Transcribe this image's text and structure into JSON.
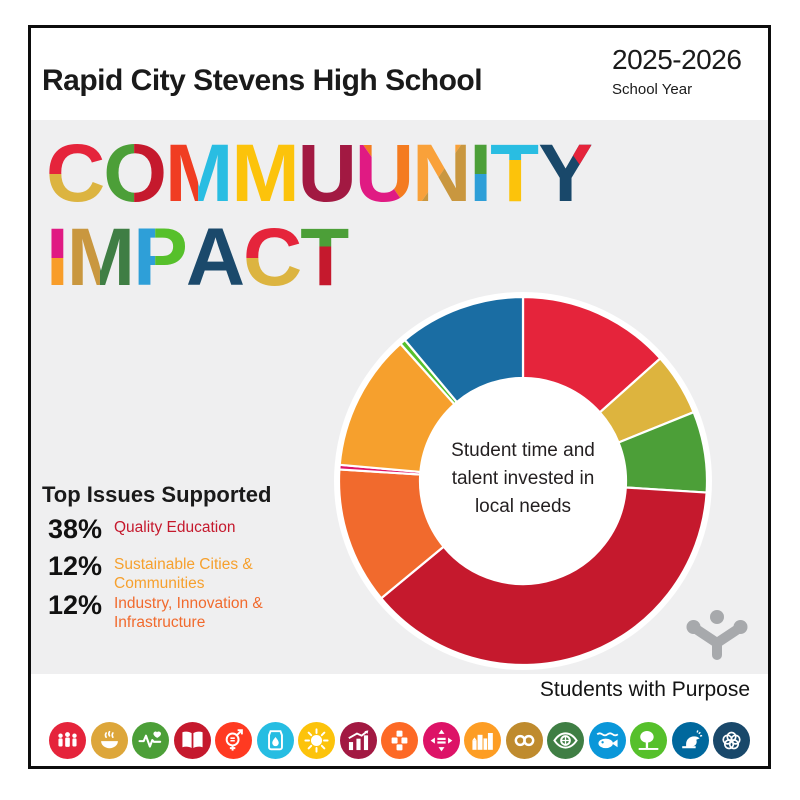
{
  "header": {
    "school": "Rapid City Stevens High School",
    "year": "2025-2026",
    "year_label": "School Year"
  },
  "title": {
    "line1": [
      {
        "ch": "C",
        "split": "h",
        "p": 50,
        "c": [
          "#e5243b",
          "#dcb440"
        ]
      },
      {
        "ch": "O",
        "split": "v",
        "p": 50,
        "c": [
          "#4c9f38",
          "#c5192d"
        ]
      },
      {
        "ch": "M",
        "split": "v",
        "p": 50,
        "c": [
          "#f03d22",
          "#29bde2"
        ]
      },
      {
        "ch": "M",
        "split": "s",
        "c": [
          "#fcc30b"
        ]
      },
      {
        "ch": "U",
        "split": "s",
        "c": [
          "#a21942"
        ]
      },
      {
        "ch": "U",
        "split": "d2",
        "c": [
          "#f47b20",
          "#e01a83"
        ]
      },
      {
        "ch": "N",
        "split": "d",
        "c": [
          "#f9a13a",
          "#c9973f"
        ]
      },
      {
        "ch": "I",
        "split": "h",
        "p": 50,
        "c": [
          "#4c9f38",
          "#2e9fd8"
        ]
      },
      {
        "ch": "T",
        "split": "h",
        "p": 33,
        "c": [
          "#29bde2",
          "#fcc30b"
        ]
      },
      {
        "ch": "Y",
        "split": "y",
        "c": [
          "#19486a",
          "#e5243b"
        ]
      }
    ],
    "line2": [
      {
        "ch": "I",
        "split": "h",
        "p": 50,
        "c": [
          "#e01a83",
          "#f89d2a"
        ]
      },
      {
        "ch": "M",
        "split": "v",
        "p": 50,
        "c": [
          "#c9973f",
          "#3f7e44"
        ]
      },
      {
        "ch": "P",
        "split": "v",
        "p": 42,
        "c": [
          "#2e9fd8",
          "#56c02b"
        ]
      },
      {
        "ch": "A",
        "split": "s",
        "c": [
          "#1b496b"
        ]
      },
      {
        "ch": "C",
        "split": "h",
        "p": 50,
        "c": [
          "#e5243b",
          "#dcb440"
        ]
      },
      {
        "ch": "T",
        "split": "h",
        "p": 36,
        "c": [
          "#4c9f38",
          "#c5192d"
        ]
      }
    ]
  },
  "chart_data": {
    "type": "donut",
    "start_angle_deg": 0,
    "direction": "clockwise",
    "center_lines": [
      "Student time and",
      "talent invested in",
      "local needs"
    ],
    "segments": [
      {
        "label": "unlabeled-1",
        "percent": 13.4,
        "color": "#e5243b"
      },
      {
        "label": "unlabeled-2",
        "percent": 5.5,
        "color": "#ddb43e"
      },
      {
        "label": "unlabeled-3",
        "percent": 7.1,
        "color": "#4c9f38"
      },
      {
        "label": "Quality Education",
        "percent": 38,
        "color": "#c5192d"
      },
      {
        "label": "Industry, Innovation & Infrastructure",
        "percent": 12,
        "color": "#f16a2d"
      },
      {
        "label": "unlabeled-4",
        "percent": 0.4,
        "color": "#dd1367"
      },
      {
        "label": "Sustainable Cities & Communities",
        "percent": 12,
        "color": "#f6a02d"
      },
      {
        "label": "unlabeled-5",
        "percent": 0.5,
        "color": "#56c02b"
      },
      {
        "label": "unlabeled-6",
        "percent": 11.1,
        "color": "#1a6da3"
      }
    ]
  },
  "top_issues": {
    "heading": "Top Issues Supported",
    "items": [
      {
        "percent": "38%",
        "label": "Quality Education",
        "color": "#c5192d"
      },
      {
        "percent": "12%",
        "label": "Sustainable Cities & Communities",
        "color": "#f6a02d"
      },
      {
        "percent": "12%",
        "label": "Industry, Innovation & Infrastructure",
        "color": "#f16a2d"
      }
    ]
  },
  "footer": {
    "brand": "Students with Purpose",
    "logo_icon": "students-with-purpose-logo",
    "logo_color": "#a7a9ac"
  },
  "sdg_icons": [
    {
      "name": "sdg-no-poverty-icon",
      "color": "#e5243b"
    },
    {
      "name": "sdg-zero-hunger-icon",
      "color": "#dda63a"
    },
    {
      "name": "sdg-good-health-icon",
      "color": "#4c9f38"
    },
    {
      "name": "sdg-quality-education-icon",
      "color": "#c5192d"
    },
    {
      "name": "sdg-gender-equality-icon",
      "color": "#ff3a21"
    },
    {
      "name": "sdg-clean-water-icon",
      "color": "#26bde2"
    },
    {
      "name": "sdg-clean-energy-icon",
      "color": "#fcc30b"
    },
    {
      "name": "sdg-decent-work-icon",
      "color": "#a21942"
    },
    {
      "name": "sdg-industry-innovation-icon",
      "color": "#fd6925"
    },
    {
      "name": "sdg-reduced-inequalities-icon",
      "color": "#dd1367"
    },
    {
      "name": "sdg-sustainable-cities-icon",
      "color": "#fd9d24"
    },
    {
      "name": "sdg-responsible-consumption-icon",
      "color": "#bf8b2e"
    },
    {
      "name": "sdg-climate-action-icon",
      "color": "#3f7e44"
    },
    {
      "name": "sdg-life-below-water-icon",
      "color": "#0a97d9"
    },
    {
      "name": "sdg-life-on-land-icon",
      "color": "#56c02b"
    },
    {
      "name": "sdg-peace-justice-icon",
      "color": "#00689d"
    },
    {
      "name": "sdg-partnerships-icon",
      "color": "#19486a"
    }
  ],
  "colors": {
    "panel": "#efeff0",
    "border": "#0d0d0d",
    "center_text": "#231f20"
  }
}
